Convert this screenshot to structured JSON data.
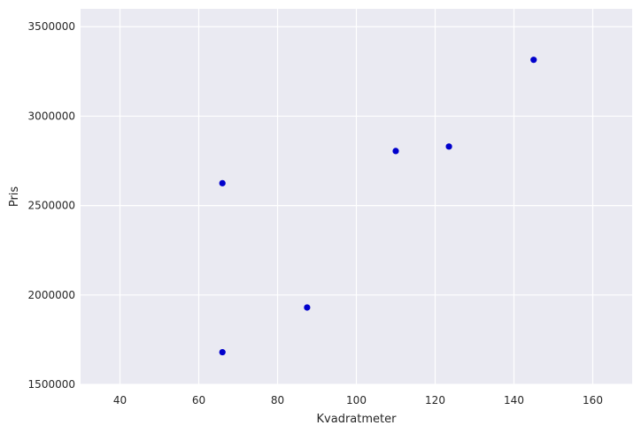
{
  "chart_data": {
    "type": "scatter",
    "title": "",
    "xlabel": "Kvadratmeter",
    "ylabel": "Pris",
    "xlim": [
      30,
      170
    ],
    "ylim": [
      1500000,
      3600000
    ],
    "x_ticks": [
      40,
      60,
      80,
      100,
      120,
      140,
      160
    ],
    "y_ticks": [
      1500000,
      2000000,
      2500000,
      3000000,
      3500000
    ],
    "x_tick_labels": [
      "40",
      "60",
      "80",
      "100",
      "120",
      "140",
      "160"
    ],
    "y_tick_labels": [
      "1500000",
      "2000000",
      "2500000",
      "3000000",
      "3500000"
    ],
    "grid": true,
    "background_color": "#EAEAF2",
    "grid_color": "#FFFFFF",
    "marker_color": "#0000CC",
    "points": [
      {
        "x": 66,
        "y": 1680000
      },
      {
        "x": 66,
        "y": 2625000
      },
      {
        "x": 87.5,
        "y": 1930000
      },
      {
        "x": 110,
        "y": 2805000
      },
      {
        "x": 123.5,
        "y": 2830000
      },
      {
        "x": 145,
        "y": 3315000
      }
    ]
  }
}
